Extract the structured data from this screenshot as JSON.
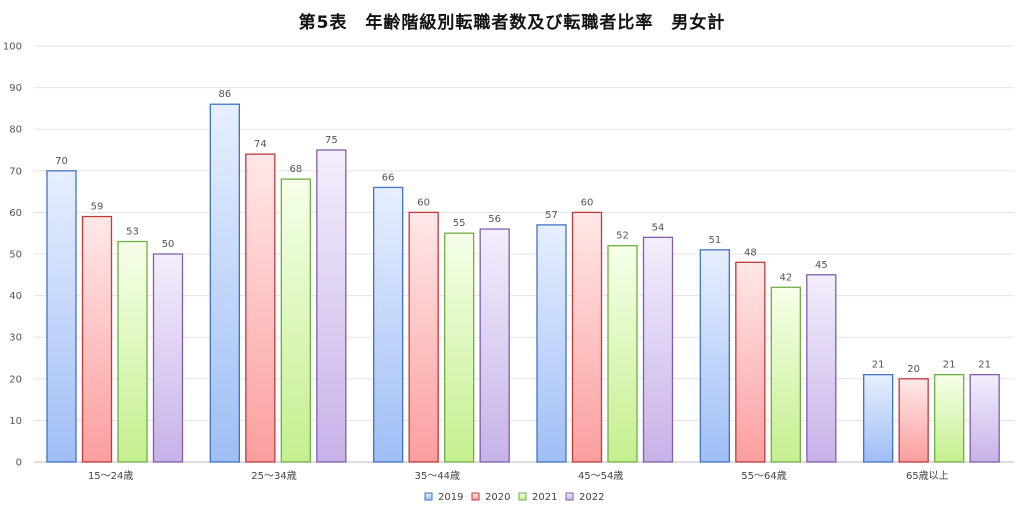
{
  "chart_data": {
    "type": "bar",
    "title": "第5表　年齢階級別転職者数及び転職者比率　男女計",
    "categories": [
      "15～24歳",
      "25～34歳",
      "35～44歳",
      "45～54歳",
      "55～64歳",
      "65歳以上"
    ],
    "series": [
      {
        "name": "2019",
        "values": [
          70,
          86,
          66,
          57,
          51,
          21
        ],
        "color": "#4472c4",
        "fill_top": "#e6efff",
        "fill_bottom": "#9fbef5"
      },
      {
        "name": "2020",
        "values": [
          59,
          74,
          60,
          60,
          48,
          20
        ],
        "color": "#c0393b",
        "fill_top": "#ffe8e8",
        "fill_bottom": "#fb9e9e"
      },
      {
        "name": "2021",
        "values": [
          53,
          68,
          55,
          52,
          42,
          21
        ],
        "color": "#70ad47",
        "fill_top": "#f6ffe9",
        "fill_bottom": "#c4ef8e"
      },
      {
        "name": "2022",
        "values": [
          50,
          75,
          56,
          54,
          45,
          21
        ],
        "color": "#7f5fa8",
        "fill_top": "#f3eefc",
        "fill_bottom": "#c7b2e8"
      }
    ],
    "ylim": [
      0,
      100
    ],
    "yticks": [
      0,
      10,
      20,
      30,
      40,
      50,
      60,
      70,
      80,
      90,
      100
    ],
    "grid": true,
    "legend_position": "bottom",
    "xlabel": "",
    "ylabel": ""
  }
}
